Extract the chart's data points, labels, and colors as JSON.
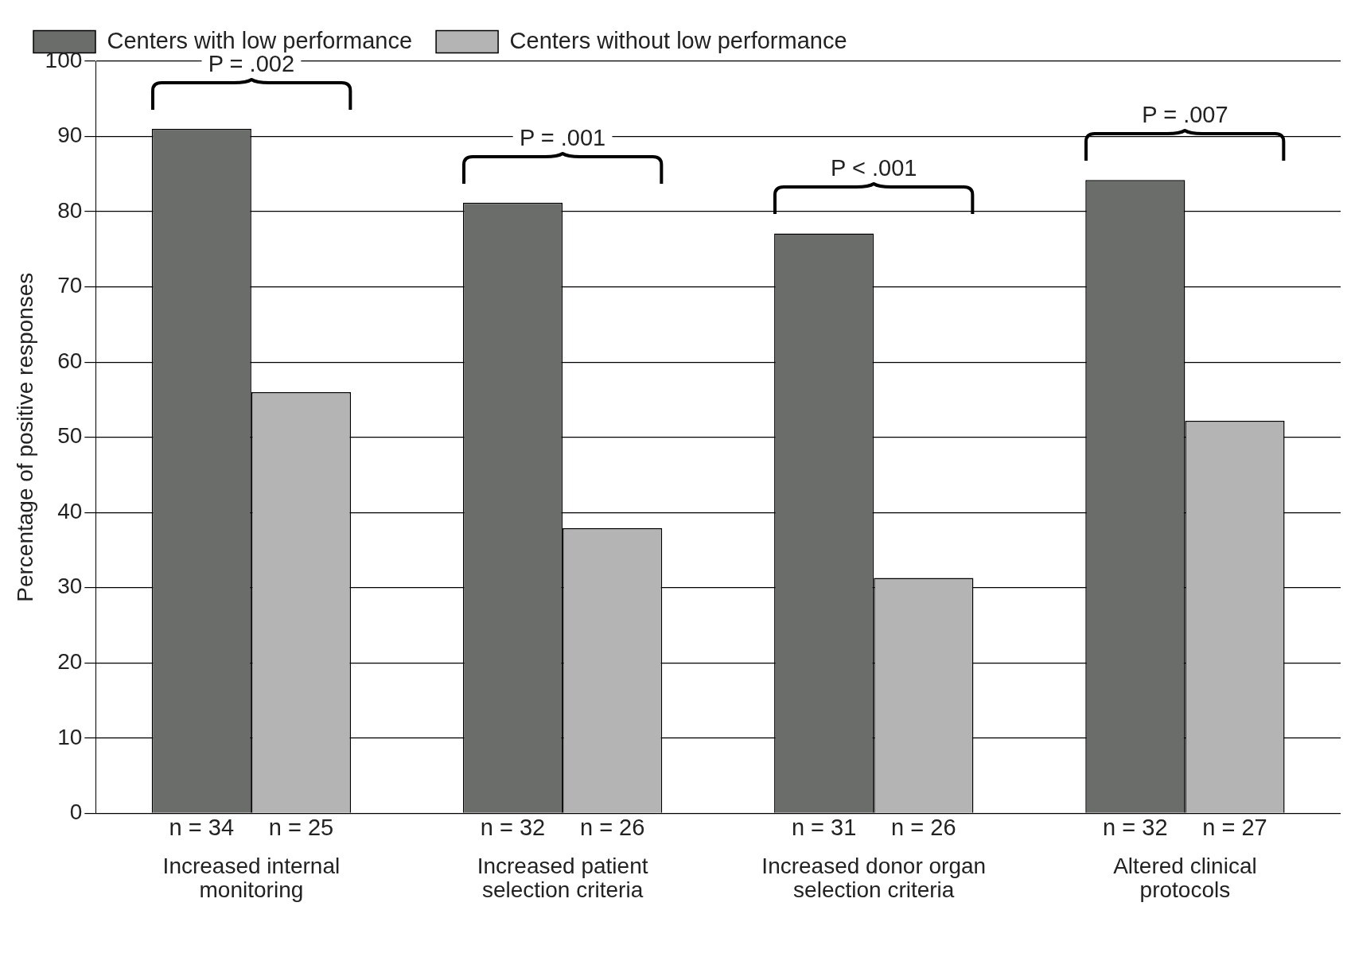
{
  "chart_data": {
    "type": "bar",
    "ylabel": "Percentage of positive responses",
    "categories": [
      "Increased internal monitoring",
      "Increased patient selection criteria",
      "Increased donor organ selection criteria",
      "Altered clinical protocols"
    ],
    "series": [
      {
        "name": "Centers with low performance",
        "color": "#6b6d6b",
        "values": [
          91,
          81.2,
          77.1,
          84.2
        ]
      },
      {
        "name": "Centers without low performance",
        "color": "#b3b4b3",
        "values": [
          56,
          37.9,
          31.3,
          52.2
        ]
      }
    ],
    "ylim": [
      0,
      100
    ],
    "yticks": [
      0,
      10,
      20,
      30,
      40,
      50,
      60,
      70,
      80,
      90,
      100
    ],
    "grid": "y",
    "legend": "top",
    "annotations": [
      "P = .002",
      "P = .001",
      "P < .001",
      "P = .007",
      {
        "text": "n = 34",
        "x": "Increased internal monitoring",
        "y": 0
      },
      {
        "text": "n = 25",
        "x": "Increased internal monitoring",
        "y": 0
      },
      {
        "text": "n = 32",
        "x": "Increased patient selection criteria",
        "y": 0
      },
      {
        "text": "n = 26",
        "x": "Increased patient selection criteria",
        "y": 0
      },
      {
        "text": "n = 31",
        "x": "Increased donor organ selection criteria",
        "y": 0
      },
      {
        "text": "n = 26",
        "x": "Increased donor organ selection criteria",
        "y": 0
      },
      {
        "text": "n = 32",
        "x": "Altered clinical protocols",
        "y": 0
      },
      {
        "text": "n = 27",
        "x": "Altered clinical protocols",
        "y": 0
      }
    ]
  }
}
